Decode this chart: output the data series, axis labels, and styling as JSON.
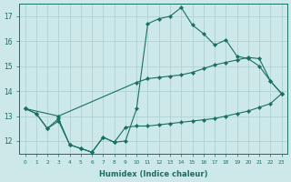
{
  "line1_x": [
    0,
    1,
    2,
    3,
    4,
    5,
    6,
    7,
    8,
    9,
    10,
    11,
    12,
    13,
    14,
    15,
    16,
    17,
    18,
    19,
    20,
    21,
    22,
    23
  ],
  "line1_y": [
    13.3,
    13.1,
    12.5,
    12.8,
    11.85,
    11.7,
    11.55,
    12.15,
    11.95,
    12.0,
    13.3,
    16.7,
    16.9,
    17.0,
    17.35,
    16.65,
    16.3,
    15.85,
    16.05,
    15.4,
    15.3,
    15.0,
    14.4,
    13.9
  ],
  "line2_x": [
    0,
    3,
    10,
    11,
    12,
    13,
    14,
    15,
    16,
    17,
    18,
    19,
    20,
    21,
    22,
    23
  ],
  "line2_y": [
    13.3,
    13.0,
    14.35,
    14.5,
    14.55,
    14.6,
    14.65,
    14.75,
    14.9,
    15.05,
    15.15,
    15.25,
    15.35,
    15.3,
    14.4,
    13.9
  ],
  "line3_x": [
    0,
    1,
    2,
    3,
    4,
    5,
    6,
    7,
    8,
    9,
    10,
    11,
    12,
    13,
    14,
    15,
    16,
    17,
    18,
    19,
    20,
    21,
    22,
    23
  ],
  "line3_y": [
    13.3,
    13.1,
    12.5,
    12.9,
    11.85,
    11.7,
    11.55,
    12.15,
    11.95,
    12.55,
    12.6,
    12.6,
    12.65,
    12.7,
    12.75,
    12.8,
    12.85,
    12.9,
    13.0,
    13.1,
    13.2,
    13.35,
    13.5,
    13.9
  ],
  "color": "#1a7060",
  "bg_color": "#cce8e8",
  "grid_color": "#aacece",
  "xlabel": "Humidex (Indice chaleur)",
  "xlim": [
    -0.5,
    23.5
  ],
  "ylim": [
    11.5,
    17.5
  ],
  "yticks": [
    12,
    13,
    14,
    15,
    16,
    17
  ],
  "xticks": [
    0,
    1,
    2,
    3,
    4,
    5,
    6,
    7,
    8,
    9,
    10,
    11,
    12,
    13,
    14,
    15,
    16,
    17,
    18,
    19,
    20,
    21,
    22,
    23
  ]
}
